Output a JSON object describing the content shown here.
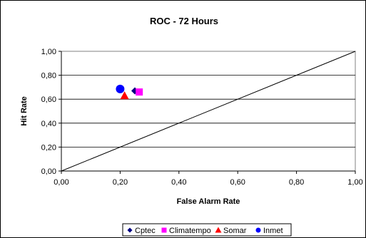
{
  "chart_data": {
    "type": "scatter",
    "title": "ROC - 72 Hours",
    "xlabel": "False Alarm Rate",
    "ylabel": "Hit Rate",
    "xlim": [
      0,
      1
    ],
    "ylim": [
      0,
      1
    ],
    "x_ticks": [
      "0,00",
      "0,20",
      "0,40",
      "0,60",
      "0,80",
      "1,00"
    ],
    "y_ticks": [
      "0,00",
      "0,20",
      "0,40",
      "0,60",
      "0,80",
      "1,00"
    ],
    "grid": "horizontal",
    "legend_position": "bottom",
    "reference_line": {
      "from": [
        0,
        0
      ],
      "to": [
        1,
        1
      ],
      "color": "#000000"
    },
    "series": [
      {
        "name": "Cptec",
        "x": 0.25,
        "y": 0.67,
        "marker": "diamond",
        "color": "#000080"
      },
      {
        "name": "Climatempo",
        "x": 0.265,
        "y": 0.66,
        "marker": "square",
        "color": "#ff00ff"
      },
      {
        "name": "Somar",
        "x": 0.215,
        "y": 0.63,
        "marker": "triangle",
        "color": "#ff0000"
      },
      {
        "name": "Inmet",
        "x": 0.2,
        "y": 0.685,
        "marker": "circle",
        "color": "#0000ff"
      }
    ]
  }
}
